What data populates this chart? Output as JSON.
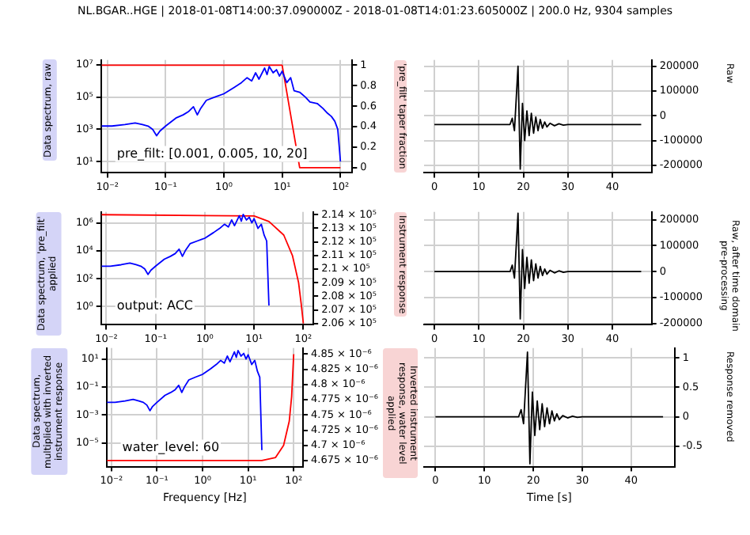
{
  "chart_data": [
    {
      "type": "line",
      "title": "NL.BGAR..HGE | 2018-01-08T14:00:37.090000Z - 2018-01-08T14:01:23.605000Z | 200.0 Hz, 9304 samples",
      "ylabel": "Data spectrum, raw",
      "y2label": "'pre_filt' taper fraction",
      "annotations": [
        "pre_filt: [0.001, 0.005, 10, 20]"
      ],
      "log": "xy",
      "grid": true,
      "legend": false,
      "marker": "none",
      "xlim": [
        0.0078,
        160
      ],
      "xticks": [
        {
          "value": 0.01,
          "label": "10⁻²"
        },
        {
          "value": 0.1,
          "label": "10⁻¹"
        },
        {
          "value": 1,
          "label": "10⁰"
        },
        {
          "value": 10,
          "label": "10¹"
        },
        {
          "value": 100,
          "label": "10²"
        }
      ],
      "ylim": [
        2,
        20000000
      ],
      "yticks": [
        {
          "value": 10,
          "label": "10¹"
        },
        {
          "value": 1000,
          "label": "10³"
        },
        {
          "value": 100000,
          "label": "10⁵"
        },
        {
          "value": 10000000,
          "label": "10⁷"
        }
      ],
      "y2lim": [
        -0.05,
        1.05
      ],
      "y2ticks": [
        0,
        0.2,
        0.4,
        0.6,
        0.8,
        1
      ],
      "series": [
        {
          "color": "#0000ff",
          "x": [
            0.008,
            0.012,
            0.02,
            0.03,
            0.04,
            0.05,
            0.06,
            0.07,
            0.08,
            0.1,
            0.15,
            0.2,
            0.25,
            0.3,
            0.35,
            0.4,
            0.5,
            0.7,
            1,
            1.5,
            2,
            2.5,
            3,
            3.5,
            4,
            5,
            5.5,
            6,
            7,
            8,
            9,
            10,
            12,
            14,
            16,
            20,
            25,
            30,
            40,
            50,
            60,
            70,
            80,
            90,
            95,
            100
          ],
          "values": [
            1600,
            1600,
            2000,
            2500,
            2000,
            1600,
            1000,
            400,
            790,
            1600,
            5000,
            7900,
            13000,
            25000,
            7900,
            20000,
            63000,
            100000,
            160000,
            400000,
            790000,
            1600000,
            1000000,
            3200000,
            1300000,
            6300000,
            2500000,
            7900000,
            3200000,
            5000000,
            2000000,
            4000000,
            790000,
            1600000,
            250000,
            200000,
            100000,
            50000,
            40000,
            20000,
            10000,
            6300,
            3200,
            1000,
            100,
            10
          ]
        },
        {
          "color": "#ff0000",
          "axis": "y2",
          "x": [
            0.008,
            10,
            20,
            100
          ],
          "values": [
            1,
            1,
            0,
            0
          ]
        }
      ]
    },
    {
      "type": "line",
      "grid": true,
      "legend": false,
      "marker": "none",
      "xlim": [
        -2.33,
        48.85
      ],
      "xticks": [
        0,
        10,
        20,
        30,
        40
      ],
      "y2label": "Raw",
      "y2lim": [
        -230000,
        225000
      ],
      "y2ticks": [
        -200000,
        -100000,
        0,
        100000,
        200000
      ],
      "series": [
        {
          "color": "#000000",
          "axis": "y2",
          "x": [
            0,
            17,
            17.5,
            18,
            18.8,
            19.3,
            19.8,
            20.3,
            20.8,
            21.3,
            21.8,
            22.3,
            22.8,
            23.3,
            23.8,
            24.3,
            24.8,
            25.3,
            26,
            27,
            28,
            29,
            30,
            46.5
          ],
          "values": [
            -35000,
            -35000,
            -10000,
            -60000,
            200000,
            -215000,
            50000,
            -100000,
            20000,
            -80000,
            10000,
            -70000,
            -5000,
            -60000,
            -15000,
            -50000,
            -25000,
            -45000,
            -30000,
            -40000,
            -32000,
            -38000,
            -35000,
            -35000
          ]
        }
      ]
    },
    {
      "type": "line",
      "ylabel": "Data spectrum, 'pre_filt' applied",
      "y2label": "Instrument response",
      "annotations": [
        "output: ACC"
      ],
      "log": "xy",
      "grid": true,
      "legend": false,
      "marker": "none",
      "xlim": [
        0.0078,
        160
      ],
      "xticks": [
        {
          "value": 0.01,
          "label": "10⁻²"
        },
        {
          "value": 0.1,
          "label": "10⁻¹"
        },
        {
          "value": 1,
          "label": "10⁰"
        },
        {
          "value": 10,
          "label": "10¹"
        },
        {
          "value": 100,
          "label": "10²"
        }
      ],
      "ylim": [
        0.05,
        6000000
      ],
      "yticks": [
        {
          "value": 1,
          "label": "10⁰"
        },
        {
          "value": 100,
          "label": "10²"
        },
        {
          "value": 10000,
          "label": "10⁴"
        },
        {
          "value": 1000000,
          "label": "10⁶"
        }
      ],
      "y2lim": [
        205900,
        214200
      ],
      "y2ticks": [
        {
          "value": 206000,
          "label": "2.06 × 10⁵"
        },
        {
          "value": 207000,
          "label": "2.07 × 10⁵"
        },
        {
          "value": 208000,
          "label": "2.08 × 10⁵"
        },
        {
          "value": 209000,
          "label": "2.09 × 10⁵"
        },
        {
          "value": 210000,
          "label": "2.1 × 10⁵"
        },
        {
          "value": 211000,
          "label": "2.11 × 10⁵"
        },
        {
          "value": 212000,
          "label": "2.12 × 10⁵"
        },
        {
          "value": 213000,
          "label": "2.13 × 10⁵"
        },
        {
          "value": 214000,
          "label": "2.14 × 10⁵"
        }
      ],
      "series": [
        {
          "color": "#0000ff",
          "x": [
            0.008,
            0.012,
            0.02,
            0.03,
            0.04,
            0.05,
            0.06,
            0.07,
            0.08,
            0.1,
            0.15,
            0.2,
            0.25,
            0.3,
            0.35,
            0.4,
            0.5,
            0.7,
            1,
            1.5,
            2,
            2.5,
            3,
            3.5,
            4,
            5,
            5.5,
            6,
            7,
            8,
            9,
            10,
            12,
            14,
            16,
            18,
            20
          ],
          "values": [
            790,
            790,
            1000,
            1300,
            1000,
            790,
            500,
            200,
            400,
            790,
            2500,
            4000,
            6300,
            13000,
            4000,
            10000,
            32000,
            50000,
            79000,
            200000,
            400000,
            790000,
            500000,
            1600000,
            630000,
            3200000,
            1300000,
            4000000,
            1600000,
            2500000,
            1000000,
            2000000,
            400000,
            790000,
            130000,
            50000,
            1.2
          ]
        },
        {
          "color": "#ff0000",
          "axis": "y2",
          "x": [
            0.008,
            10,
            20,
            40,
            60,
            80,
            90,
            100
          ],
          "values": [
            214000,
            213900,
            213500,
            212500,
            211000,
            209000,
            207500,
            206000
          ]
        }
      ]
    },
    {
      "type": "line",
      "grid": true,
      "legend": false,
      "marker": "none",
      "xlim": [
        -2.33,
        48.85
      ],
      "xticks": [
        0,
        10,
        20,
        30,
        40
      ],
      "y2label": "Raw, after time domain pre-processing",
      "y2lim": [
        -205000,
        230000
      ],
      "y2ticks": [
        -200000,
        -100000,
        0,
        100000,
        200000
      ],
      "series": [
        {
          "color": "#000000",
          "axis": "y2",
          "x": [
            0,
            17,
            17.5,
            18,
            18.8,
            19.3,
            19.8,
            20.3,
            20.8,
            21.3,
            21.8,
            22.3,
            22.8,
            23.3,
            23.8,
            24.3,
            24.8,
            25.3,
            26,
            27,
            28,
            29,
            30,
            46.5
          ],
          "values": [
            0,
            0,
            25000,
            -25000,
            225000,
            -182000,
            85000,
            -65000,
            55000,
            -45000,
            45000,
            -35000,
            30000,
            -25000,
            20000,
            -15000,
            10000,
            -10000,
            5000,
            -5000,
            3000,
            -3000,
            0,
            0
          ]
        }
      ]
    },
    {
      "type": "line",
      "ylabel": "Data spectrum, multiplied with inverted instrument response",
      "y2label": "Inverted instrument response, water level applied",
      "xlabel": "Frequency [Hz]",
      "annotations": [
        "water_level: 60"
      ],
      "log": "xy",
      "grid": true,
      "legend": false,
      "marker": "none",
      "xlim": [
        0.0078,
        160
      ],
      "xticks": [
        {
          "value": 0.01,
          "label": "10⁻²"
        },
        {
          "value": 0.1,
          "label": "10⁻¹"
        },
        {
          "value": 1,
          "label": "10⁰"
        },
        {
          "value": 10,
          "label": "10¹"
        },
        {
          "value": 100,
          "label": "10²"
        }
      ],
      "ylim": [
        2e-07,
        60
      ],
      "yticks": [
        {
          "value": 1e-05,
          "label": "10⁻⁵"
        },
        {
          "value": 0.001,
          "label": "10⁻³"
        },
        {
          "value": 0.1,
          "label": "10⁻¹"
        },
        {
          "value": 10,
          "label": "10¹"
        }
      ],
      "y2lim": [
        4.665e-06,
        4.86e-06
      ],
      "y2ticks": [
        {
          "value": 4.675e-06,
          "label": "4.675 × 10⁻⁶"
        },
        {
          "value": 4.7e-06,
          "label": "4.7 × 10⁻⁶"
        },
        {
          "value": 4.725e-06,
          "label": "4.725 × 10⁻⁶"
        },
        {
          "value": 4.75e-06,
          "label": "4.75 × 10⁻⁶"
        },
        {
          "value": 4.775e-06,
          "label": "4.775 × 10⁻⁶"
        },
        {
          "value": 4.8e-06,
          "label": "4.8 × 10⁻⁶"
        },
        {
          "value": 4.825e-06,
          "label": "4.825 × 10⁻⁶"
        },
        {
          "value": 4.85e-06,
          "label": "4.85 × 10⁻⁶"
        }
      ],
      "series": [
        {
          "color": "#0000ff",
          "x": [
            0.008,
            0.012,
            0.02,
            0.03,
            0.04,
            0.05,
            0.06,
            0.07,
            0.08,
            0.1,
            0.15,
            0.2,
            0.25,
            0.3,
            0.35,
            0.4,
            0.5,
            0.7,
            1,
            1.5,
            2,
            2.5,
            3,
            3.5,
            4,
            5,
            5.5,
            6,
            7,
            8,
            9,
            10,
            12,
            14,
            16,
            18,
            20
          ],
          "values": [
            0.0079,
            0.0079,
            0.01,
            0.013,
            0.01,
            0.0079,
            0.005,
            0.002,
            0.004,
            0.0079,
            0.025,
            0.04,
            0.063,
            0.13,
            0.04,
            0.1,
            0.32,
            0.5,
            0.79,
            2,
            4,
            7.9,
            5,
            16,
            6.3,
            32,
            13,
            40,
            16,
            25,
            10,
            20,
            4,
            7.9,
            1.3,
            0.5,
            3e-06
          ]
        },
        {
          "color": "#ff0000",
          "axis": "y2",
          "x": [
            0.008,
            10,
            20,
            40,
            60,
            80,
            90,
            100
          ],
          "values": [
            4.675e-06,
            4.675e-06,
            4.675e-06,
            4.68e-06,
            4.7e-06,
            4.74e-06,
            4.78e-06,
            4.85e-06
          ]
        }
      ]
    },
    {
      "type": "line",
      "grid": true,
      "legend": false,
      "marker": "none",
      "xlabel": "Time [s]",
      "xlim": [
        -2.33,
        48.85
      ],
      "xticks": [
        0,
        10,
        20,
        30,
        40
      ],
      "y2label": "Response removed",
      "y2lim": [
        -0.85,
        1.17
      ],
      "y2ticks": [
        -0.5,
        0,
        0.5,
        1
      ],
      "series": [
        {
          "color": "#000000",
          "axis": "y2",
          "x": [
            0,
            17,
            17.5,
            18,
            18.8,
            19.3,
            19.8,
            20.3,
            20.8,
            21.3,
            21.8,
            22.3,
            22.8,
            23.3,
            23.8,
            24.3,
            24.8,
            25.3,
            26,
            27,
            28,
            29,
            30,
            46.5
          ],
          "values": [
            0,
            0,
            0.12,
            -0.12,
            1.1,
            -0.8,
            0.42,
            -0.32,
            0.27,
            -0.22,
            0.22,
            -0.17,
            0.15,
            -0.12,
            0.1,
            -0.07,
            0.05,
            -0.05,
            0.02,
            -0.02,
            0.01,
            -0.01,
            0,
            0
          ]
        }
      ]
    }
  ]
}
